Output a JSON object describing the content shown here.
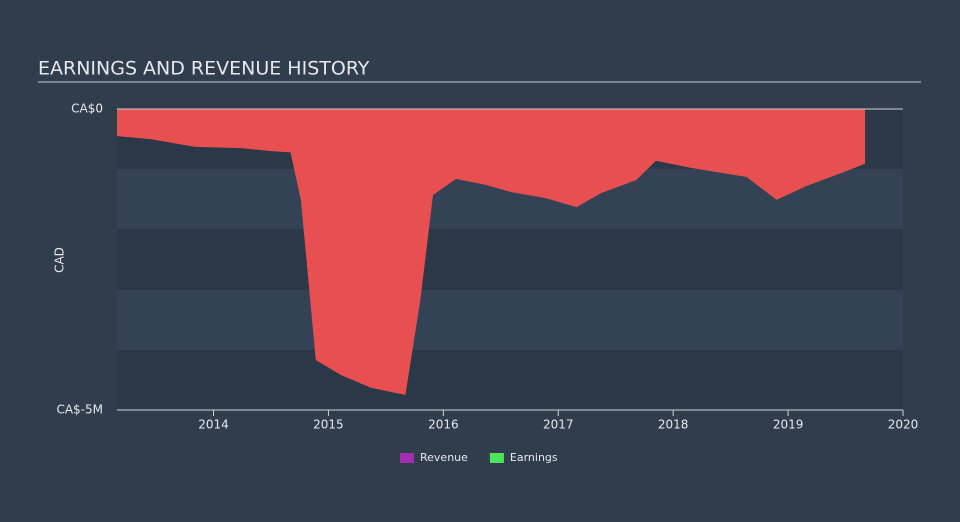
{
  "chart_data": {
    "type": "area",
    "title": "EARNINGS AND REVENUE HISTORY",
    "y_label": "CAD",
    "x": [
      2013.16,
      2013.45,
      2013.84,
      2014.24,
      2014.5,
      2014.67,
      2014.76,
      2014.89,
      2015.11,
      2015.37,
      2015.67,
      2015.8,
      2015.91,
      2016.11,
      2016.37,
      2016.59,
      2016.89,
      2017.16,
      2017.37,
      2017.68,
      2017.85,
      2018.16,
      2018.64,
      2018.9,
      2019.16,
      2019.47,
      2019.67
    ],
    "series": [
      {
        "name": "Revenue",
        "color": "#a02fb0",
        "values": [
          null,
          null,
          null,
          null,
          null,
          null,
          null,
          null,
          null,
          null,
          null,
          null,
          null,
          null,
          null,
          null,
          null,
          null,
          null,
          null,
          null,
          null,
          null,
          null,
          null,
          null,
          null
        ]
      },
      {
        "name": "Earnings",
        "color": "#4fe35a",
        "area_color": "#e84f51",
        "values": [
          -450000,
          -500000,
          -630000,
          -650000,
          -700000,
          -720000,
          -1510000,
          -4170000,
          -4420000,
          -4630000,
          -4750000,
          -3170000,
          -1430000,
          -1160000,
          -1260000,
          -1380000,
          -1480000,
          -1630000,
          -1400000,
          -1180000,
          -860000,
          -980000,
          -1130000,
          -1510000,
          -1280000,
          -1060000,
          -910000
        ]
      }
    ],
    "xlim": [
      2013.16,
      2020.0
    ],
    "xticks": [
      2014,
      2015,
      2016,
      2017,
      2018,
      2019,
      2020
    ],
    "ylim": [
      -5000000,
      0
    ],
    "yticks": [
      {
        "value": 0,
        "label": "CA$0"
      },
      {
        "value": -5000000,
        "label": "CA$-5M"
      }
    ]
  }
}
